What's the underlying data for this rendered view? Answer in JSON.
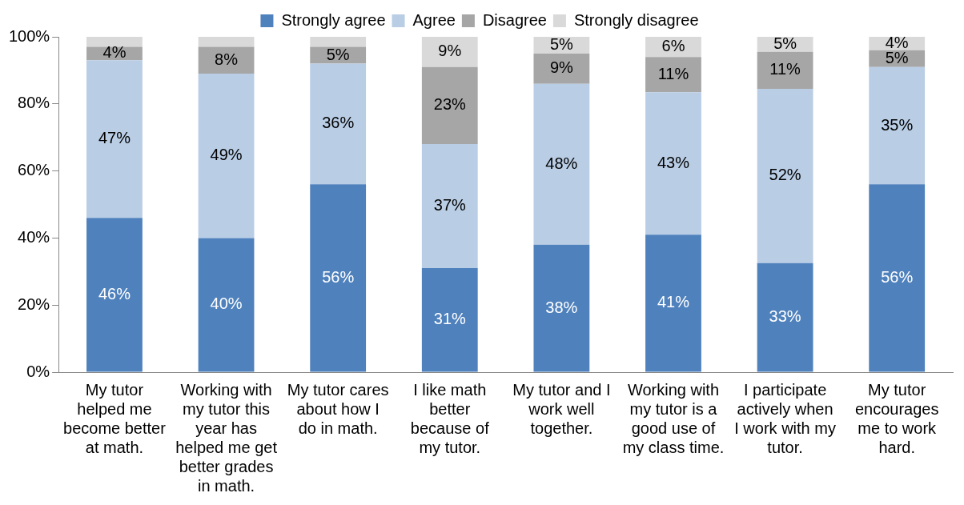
{
  "chart_data": {
    "type": "bar",
    "stacked": true,
    "legend": "top",
    "categories": [
      "My tutor helped me become better at math.",
      "Working with my tutor this year has helped me get better grades in math.",
      "My tutor cares about how I do in math.",
      "I like math better because of my tutor.",
      "My tutor and I work well together.",
      "Working with my tutor is a good use of my class time.",
      "I participate actively when I work with my tutor.",
      "My tutor encourages me to work hard."
    ],
    "ylim": [
      0,
      100
    ],
    "yticks": [
      {
        "value": 0,
        "label": "0%"
      },
      {
        "value": 20,
        "label": "20%"
      },
      {
        "value": 40,
        "label": "40%"
      },
      {
        "value": 60,
        "label": "60%"
      },
      {
        "value": 80,
        "label": "80%"
      },
      {
        "value": 100,
        "label": "100%"
      }
    ],
    "series": [
      {
        "name": "Strongly agree",
        "color": "#4f81bd",
        "values": [
          46,
          40,
          56,
          31,
          38,
          41,
          32.5,
          56
        ],
        "value_labels": [
          "46%",
          "40%",
          "56%",
          "31%",
          "38%",
          "41%",
          "33%",
          "56%"
        ]
      },
      {
        "name": "Agree",
        "color": "#b9cde5",
        "values": [
          47,
          49,
          36,
          37,
          48,
          42.5,
          52,
          35
        ],
        "value_labels": [
          "47%",
          "49%",
          "36%",
          "37%",
          "48%",
          "43%",
          "52%",
          "35%"
        ]
      },
      {
        "name": "Disagree",
        "color": "#a6a6a6",
        "values": [
          4,
          8,
          5,
          23,
          9,
          10.5,
          11,
          5
        ],
        "value_labels": [
          "4%",
          "8%",
          "5%",
          "23%",
          "9%",
          "11%",
          "11%",
          "5%"
        ]
      },
      {
        "name": "Strongly disagree",
        "color": "#d9d9d9",
        "values": [
          3,
          3,
          3,
          9,
          5,
          6,
          4.5,
          4
        ],
        "value_labels": [
          null,
          null,
          null,
          "9%",
          "5%",
          "6%",
          "5%",
          "4%"
        ]
      }
    ]
  }
}
